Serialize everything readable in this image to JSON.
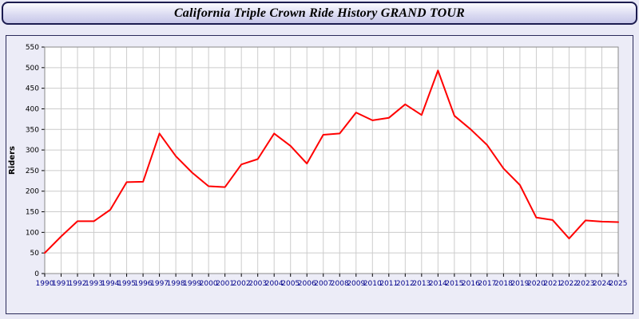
{
  "window": {
    "title": "California Triple Crown Ride History GRAND TOUR"
  },
  "chart_data": {
    "type": "line",
    "title": "California Triple Crown Ride History GRAND TOUR",
    "xlabel": "",
    "ylabel": "Riders",
    "ylim": [
      0,
      550
    ],
    "ytick_step": 50,
    "grid": true,
    "legend_position": "none",
    "x": [
      1990,
      1991,
      1992,
      1993,
      1994,
      1995,
      1996,
      1997,
      1998,
      1999,
      2000,
      2001,
      2002,
      2003,
      2004,
      2005,
      2006,
      2007,
      2008,
      2009,
      2010,
      2011,
      2012,
      2013,
      2014,
      2015,
      2016,
      2017,
      2018,
      2019,
      2020,
      2021,
      2022,
      2023,
      2024,
      2025
    ],
    "series": [
      {
        "name": "Riders",
        "color": "#ff0000",
        "values": [
          50,
          90,
          127,
          127,
          155,
          222,
          223,
          340,
          285,
          245,
          212,
          210,
          265,
          278,
          340,
          310,
          267,
          337,
          340,
          391,
          372,
          378,
          411,
          385,
          493,
          383,
          350,
          312,
          255,
          215,
          136,
          130,
          85,
          129,
          126,
          125
        ]
      }
    ],
    "colors": {
      "line": "#ff0000",
      "plot_bg": "#ffffff",
      "grid": "#cccccc",
      "axis_border": "#8a8a8a",
      "x_tick_label": "#00008b",
      "y_tick_label": "#000000",
      "tick_mark": "#000000"
    }
  }
}
